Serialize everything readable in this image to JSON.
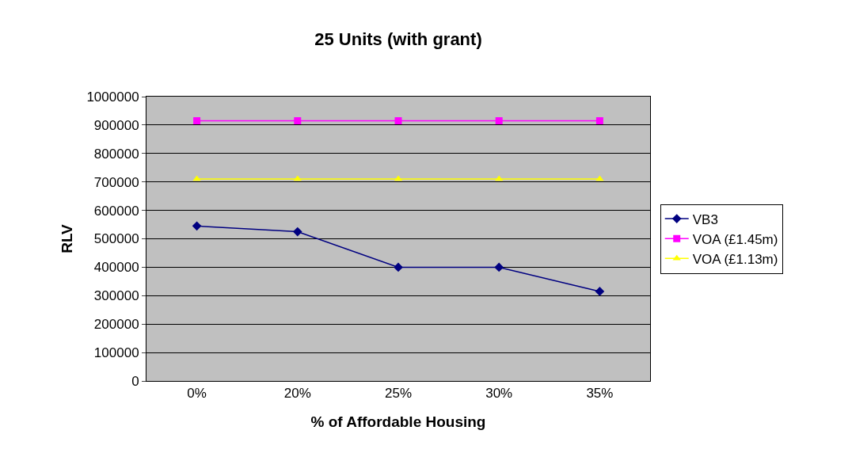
{
  "chart_data": {
    "type": "line",
    "title": "25 Units (with grant)",
    "xlabel": "% of Affordable Housing",
    "ylabel": "RLV",
    "categories": [
      "0%",
      "20%",
      "25%",
      "30%",
      "35%"
    ],
    "series": [
      {
        "name": "VB3",
        "color": "#000080",
        "marker": "diamond",
        "values": [
          545000,
          525000,
          400000,
          400000,
          315000
        ]
      },
      {
        "name": "VOA (£1.45m)",
        "color": "#ff00ff",
        "marker": "square",
        "values": [
          915000,
          915000,
          915000,
          915000,
          915000
        ]
      },
      {
        "name": "VOA (£1.13m)",
        "color": "#ffff00",
        "marker": "triangle",
        "values": [
          710000,
          710000,
          710000,
          710000,
          710000
        ]
      }
    ],
    "ylim": [
      0,
      1000000
    ],
    "yticks": [
      0,
      100000,
      200000,
      300000,
      400000,
      500000,
      600000,
      700000,
      800000,
      900000,
      1000000
    ],
    "grid": "y",
    "legend": "right",
    "line_style": "solid"
  }
}
